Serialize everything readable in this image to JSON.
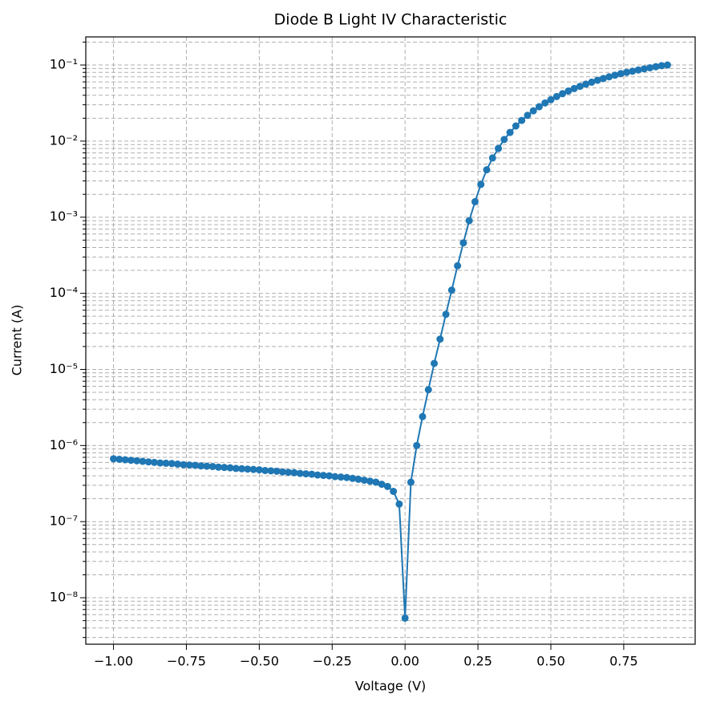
{
  "chart_data": {
    "type": "line",
    "title": "Diode B Light IV Characteristic",
    "xlabel": "Voltage (V)",
    "ylabel": "Current (A)",
    "x": [
      -1.0,
      -0.98,
      -0.96,
      -0.94,
      -0.92,
      -0.9,
      -0.88,
      -0.86,
      -0.84,
      -0.82,
      -0.8,
      -0.78,
      -0.76,
      -0.74,
      -0.72,
      -0.7,
      -0.68,
      -0.66,
      -0.64,
      -0.62,
      -0.6,
      -0.58,
      -0.56,
      -0.54,
      -0.52,
      -0.5,
      -0.48,
      -0.46,
      -0.44,
      -0.42,
      -0.4,
      -0.38,
      -0.36,
      -0.34,
      -0.32,
      -0.3,
      -0.28,
      -0.26,
      -0.24,
      -0.22,
      -0.2,
      -0.18,
      -0.16,
      -0.14,
      -0.12,
      -0.1,
      -0.08,
      -0.06,
      -0.04,
      -0.02,
      0.0,
      0.02,
      0.04,
      0.06,
      0.08,
      0.1,
      0.12,
      0.14,
      0.16,
      0.18,
      0.2,
      0.22,
      0.24,
      0.26,
      0.28,
      0.3,
      0.32,
      0.34,
      0.36,
      0.38,
      0.4,
      0.42,
      0.44,
      0.46,
      0.48,
      0.5,
      0.52,
      0.54,
      0.56,
      0.58,
      0.6,
      0.62,
      0.64,
      0.66,
      0.68,
      0.7,
      0.72,
      0.74,
      0.76,
      0.78,
      0.8,
      0.82,
      0.84,
      0.86,
      0.88,
      0.9
    ],
    "series": [
      {
        "name": "Diode B",
        "color": "#1f77b4",
        "values": [
          6.7e-07,
          6.6e-07,
          6.5e-07,
          6.4e-07,
          6.3e-07,
          6.2e-07,
          6.1e-07,
          6e-07,
          5.9e-07,
          5.85e-07,
          5.8e-07,
          5.7e-07,
          5.6e-07,
          5.55e-07,
          5.5e-07,
          5.4e-07,
          5.35e-07,
          5.3e-07,
          5.2e-07,
          5.15e-07,
          5.1e-07,
          5e-07,
          4.95e-07,
          4.9e-07,
          4.85e-07,
          4.8e-07,
          4.7e-07,
          4.65e-07,
          4.6e-07,
          4.5e-07,
          4.45e-07,
          4.4e-07,
          4.3e-07,
          4.25e-07,
          4.2e-07,
          4.1e-07,
          4.05e-07,
          4e-07,
          3.9e-07,
          3.85e-07,
          3.8e-07,
          3.7e-07,
          3.6e-07,
          3.5e-07,
          3.4e-07,
          3.3e-07,
          3.1e-07,
          2.9e-07,
          2.5e-07,
          1.7e-07,
          5.4e-09,
          3.3e-07,
          1e-06,
          2.4e-06,
          5.4e-06,
          1.2e-05,
          2.5e-05,
          5.3e-05,
          0.00011,
          0.00023,
          0.00046,
          0.0009,
          0.0016,
          0.0027,
          0.0042,
          0.006,
          0.008,
          0.0105,
          0.013,
          0.0158,
          0.0187,
          0.0218,
          0.025,
          0.0283,
          0.0317,
          0.035,
          0.0385,
          0.042,
          0.0455,
          0.049,
          0.0525,
          0.056,
          0.0595,
          0.063,
          0.0665,
          0.07,
          0.0735,
          0.077,
          0.08,
          0.083,
          0.086,
          0.089,
          0.092,
          0.095,
          0.098,
          0.1
        ]
      }
    ],
    "xlim": [
      -1.095,
      0.995
    ],
    "ylim": [
      2.45e-09,
      0.234
    ],
    "log_y": true,
    "grid": true,
    "minor_grid": true,
    "xticks": [
      {
        "value": -1,
        "label": "−1.00"
      },
      {
        "value": -0.75,
        "label": "−0.75"
      },
      {
        "value": -0.5,
        "label": "−0.50"
      },
      {
        "value": -0.25,
        "label": "−0.25"
      },
      {
        "value": 0,
        "label": "0.00"
      },
      {
        "value": 0.25,
        "label": "0.25"
      },
      {
        "value": 0.5,
        "label": "0.50"
      },
      {
        "value": 0.75,
        "label": "0.75"
      }
    ],
    "yticks": [
      {
        "value": 1e-08,
        "label": "10⁻⁸"
      },
      {
        "value": 1e-07,
        "label": "10⁻⁷"
      },
      {
        "value": 1e-06,
        "label": "10⁻⁶"
      },
      {
        "value": 1e-05,
        "label": "10⁻⁵"
      },
      {
        "value": 0.0001,
        "label": "10⁻⁴"
      },
      {
        "value": 0.001,
        "label": "10⁻³"
      },
      {
        "value": 0.01,
        "label": "10⁻²"
      },
      {
        "value": 0.1,
        "label": "10⁻¹"
      }
    ]
  }
}
